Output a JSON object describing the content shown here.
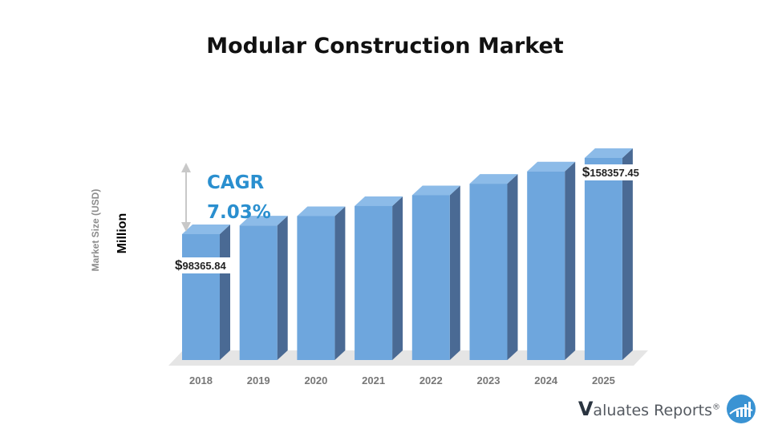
{
  "chart_data": {
    "type": "bar",
    "title": "Modular Construction Market",
    "ylabel": "Market Size (USD)",
    "yunit": "Million",
    "categories": [
      "2018",
      "2019",
      "2020",
      "2021",
      "2022",
      "2023",
      "2024",
      "2025"
    ],
    "values": [
      98365.84,
      105200,
      112600,
      120500,
      129000,
      138100,
      147800,
      158357.45
    ],
    "data_labels": [
      "$98365.84",
      "",
      "",
      "",
      "",
      "",
      "",
      "$158357.45"
    ],
    "legend": "none",
    "grid": false
  },
  "annotation": {
    "cagr_label": "CAGR",
    "cagr_value": "7.03%"
  },
  "brand": {
    "initial": "V",
    "rest": "aluates Reports",
    "reg": "®",
    "icon": "bar-chart-globe-icon"
  },
  "colors": {
    "bar_front": "#6ea6dd",
    "bar_top": "#8cbbe8",
    "bar_side": "#4a6a94",
    "floor": "#e5e5e5",
    "cagr": "#2a8fcf"
  }
}
